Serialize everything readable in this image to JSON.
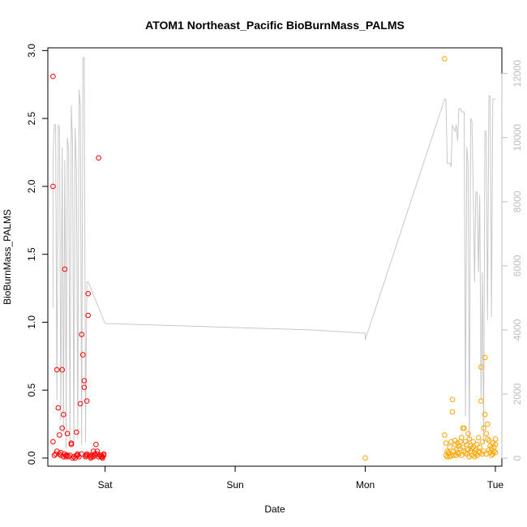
{
  "chart_data": {
    "type": "scatter",
    "title": "ATOM1 Northeast_Pacific BioBurnMass_PALMS",
    "xlabel": "Date",
    "ylabel": "BioBurnMass_PALMS",
    "x_ticks": [
      "Sat",
      "Sun",
      "Mon",
      "Tue"
    ],
    "x_tick_positions": [
      1,
      2,
      3,
      4
    ],
    "xlim": [
      0.56,
      4.05
    ],
    "ylim": [
      -0.06,
      3.02
    ],
    "y_ticks": [
      "0.0",
      "0.5",
      "1.0",
      "1.5",
      "2.0",
      "2.5",
      "3.0"
    ],
    "y_tick_values": [
      0,
      0.5,
      1.0,
      1.5,
      2.0,
      2.5,
      3.0
    ],
    "y2lim": [
      -250,
      12800
    ],
    "y2_ticks": [
      "0",
      "2000",
      "4000",
      "6000",
      "8000",
      "10000",
      "12000"
    ],
    "y2_tick_values": [
      0,
      2000,
      4000,
      6000,
      8000,
      10000,
      12000
    ],
    "grid": false,
    "colors": {
      "series1": "#ff0000",
      "series2": "#ffa500",
      "altitude": "#c8c8c8"
    },
    "series": [
      {
        "color": "#ff0000",
        "marker": "open-circle",
        "x": [
          0.6,
          0.6,
          0.6,
          0.61,
          0.62,
          0.63,
          0.63,
          0.64,
          0.65,
          0.65,
          0.66,
          0.66,
          0.67,
          0.67,
          0.68,
          0.68,
          0.69,
          0.69,
          0.7,
          0.7,
          0.71,
          0.71,
          0.72,
          0.73,
          0.74,
          0.74,
          0.75,
          0.76,
          0.77,
          0.78,
          0.78,
          0.79,
          0.79,
          0.8,
          0.81,
          0.82,
          0.82,
          0.83,
          0.84,
          0.84,
          0.85,
          0.85,
          0.86,
          0.86,
          0.86,
          0.87,
          0.87,
          0.88,
          0.89,
          0.89,
          0.9,
          0.91,
          0.91,
          0.92,
          0.92,
          0.93,
          0.94,
          0.94,
          0.95,
          0.95,
          0.96,
          0.97,
          0.97,
          0.98,
          0.98,
          0.99,
          0.99
        ],
        "y": [
          2.81,
          2.0,
          0.12,
          0.02,
          0.03,
          0.05,
          0.65,
          0.37,
          0.03,
          0.17,
          0.02,
          0.04,
          0.65,
          0.22,
          0.32,
          0.01,
          1.39,
          0.03,
          0.02,
          0.01,
          0.02,
          0.18,
          0.01,
          0.02,
          0.1,
          0.11,
          0.0,
          0.01,
          0.0,
          0.02,
          0.19,
          0.03,
          0.02,
          0.01,
          0.4,
          0.03,
          0.91,
          0.76,
          0.57,
          0.52,
          0.02,
          0.01,
          0.02,
          0.03,
          0.42,
          1.05,
          1.21,
          0.02,
          0.01,
          0.0,
          0.02,
          0.01,
          0.05,
          0.03,
          0.02,
          0.1,
          0.03,
          0.05,
          0.01,
          2.21,
          0.02,
          0.01,
          0.02,
          0.0,
          0.01,
          0.02,
          0.03
        ]
      },
      {
        "color": "#ffa500",
        "marker": "open-circle",
        "x": [
          3.0,
          3.61,
          3.61,
          3.62,
          3.62,
          3.63,
          3.63,
          3.64,
          3.64,
          3.65,
          3.65,
          3.66,
          3.66,
          3.67,
          3.67,
          3.68,
          3.68,
          3.69,
          3.69,
          3.7,
          3.7,
          3.71,
          3.71,
          3.72,
          3.72,
          3.73,
          3.73,
          3.74,
          3.74,
          3.75,
          3.75,
          3.76,
          3.76,
          3.77,
          3.77,
          3.78,
          3.78,
          3.79,
          3.79,
          3.8,
          3.8,
          3.81,
          3.81,
          3.82,
          3.82,
          3.83,
          3.83,
          3.84,
          3.84,
          3.85,
          3.85,
          3.86,
          3.86,
          3.87,
          3.87,
          3.88,
          3.88,
          3.89,
          3.89,
          3.9,
          3.9,
          3.91,
          3.91,
          3.92,
          3.92,
          3.93,
          3.93,
          3.94,
          3.94,
          3.95,
          3.95,
          3.96,
          3.96,
          3.97,
          3.97,
          3.98,
          3.98,
          3.99,
          3.99,
          4.0,
          4.0,
          4.0
        ],
        "y": [
          0.0,
          2.94,
          0.17,
          0.11,
          0.02,
          0.01,
          0.05,
          0.04,
          0.03,
          0.01,
          0.08,
          0.02,
          0.12,
          0.43,
          0.34,
          0.05,
          0.02,
          0.1,
          0.13,
          0.02,
          0.06,
          0.11,
          0.04,
          0.09,
          0.03,
          0.12,
          0.07,
          0.15,
          0.02,
          0.22,
          0.08,
          0.22,
          0.05,
          0.12,
          0.04,
          0.1,
          0.03,
          0.18,
          0.06,
          0.14,
          0.01,
          0.09,
          0.05,
          0.07,
          0.02,
          0.12,
          0.08,
          0.04,
          0.01,
          0.06,
          0.03,
          0.1,
          0.02,
          0.05,
          0.15,
          0.08,
          0.04,
          0.67,
          0.42,
          0.03,
          0.12,
          0.22,
          0.05,
          0.74,
          0.32,
          0.18,
          0.03,
          0.25,
          0.14,
          0.06,
          0.13,
          0.04,
          0.09,
          0.02,
          0.07,
          0.03,
          0.11,
          0.05,
          0.08,
          0.04,
          0.14,
          0.1
        ]
      }
    ],
    "altitude_line": {
      "color": "#c8c8c8",
      "axis": "right",
      "x": [
        0.6,
        0.6,
        0.61,
        0.62,
        0.63,
        0.64,
        0.65,
        0.66,
        0.67,
        0.68,
        0.69,
        0.7,
        0.7,
        0.71,
        0.72,
        0.73,
        0.74,
        0.75,
        0.76,
        0.77,
        0.78,
        0.79,
        0.8,
        0.81,
        0.82,
        0.83,
        0.84,
        0.85,
        0.86,
        0.87,
        0.88,
        0.89,
        0.9,
        0.91,
        0.92,
        0.93,
        0.94,
        0.95,
        0.96,
        0.97,
        0.98,
        0.99,
        1.0,
        2.59,
        3.0,
        3.0,
        3.61,
        3.62,
        3.63,
        3.64,
        3.65,
        3.66,
        3.67,
        3.68,
        3.69,
        3.7,
        3.71,
        3.72,
        3.73,
        3.74,
        3.75,
        3.76,
        3.77,
        3.78,
        3.79,
        3.8,
        3.81,
        3.82,
        3.83,
        3.84,
        3.85,
        3.86,
        3.87,
        3.88,
        3.89,
        3.9,
        3.91,
        3.92,
        3.93,
        3.94,
        3.95,
        3.96,
        3.97,
        3.98,
        3.99,
        4.0,
        4.0
      ],
      "y": [
        4700,
        9400,
        10400,
        10400,
        1800,
        10400,
        10300,
        1200,
        9700,
        800,
        9300,
        2200,
        300,
        10000,
        9600,
        500,
        11000,
        9800,
        400,
        10300,
        9000,
        600,
        11500,
        11000,
        400,
        12500,
        12500,
        500,
        5500,
        5500,
        5400,
        5300,
        5200,
        5100,
        5000,
        4900,
        4800,
        4700,
        4600,
        4500,
        4400,
        4300,
        4200,
        4000,
        3900,
        3700,
        11200,
        11200,
        9200,
        9200,
        9200,
        9100,
        10400,
        10300,
        10200,
        10400,
        9900,
        10900,
        10900,
        10800,
        10800,
        10800,
        1300,
        9700,
        9200,
        200,
        10600,
        10500,
        8400,
        5500,
        8300,
        8300,
        5800,
        8200,
        1800,
        5800,
        500,
        10200,
        10200,
        4300,
        11300,
        11300,
        4400,
        11200,
        11200,
        11200,
        11200
      ]
    }
  }
}
